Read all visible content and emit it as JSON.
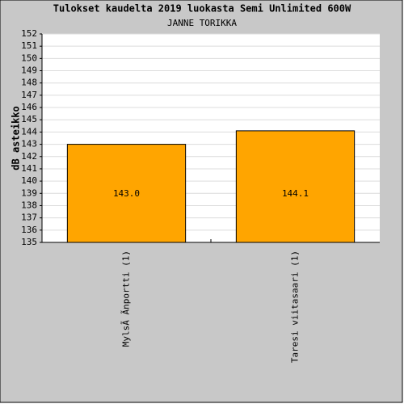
{
  "chart_data": {
    "type": "bar",
    "title": "Tulokset kaudelta 2019 luokasta Semi Unlimited 600W",
    "subtitle": "JANNE TORIKKA",
    "y_label": "dB asteikko",
    "categories": [
      "MylsÃ Ãnportti (1)",
      "Taresi viitasaari (1)"
    ],
    "values": [
      143.0,
      144.1
    ],
    "value_labels": [
      "143.0",
      "144.1"
    ],
    "color": "#ffa500",
    "ylim": [
      135,
      152
    ],
    "yticks": [
      135,
      136,
      137,
      138,
      139,
      140,
      141,
      142,
      143,
      144,
      145,
      146,
      147,
      148,
      149,
      150,
      151,
      152
    ],
    "grid": true
  }
}
